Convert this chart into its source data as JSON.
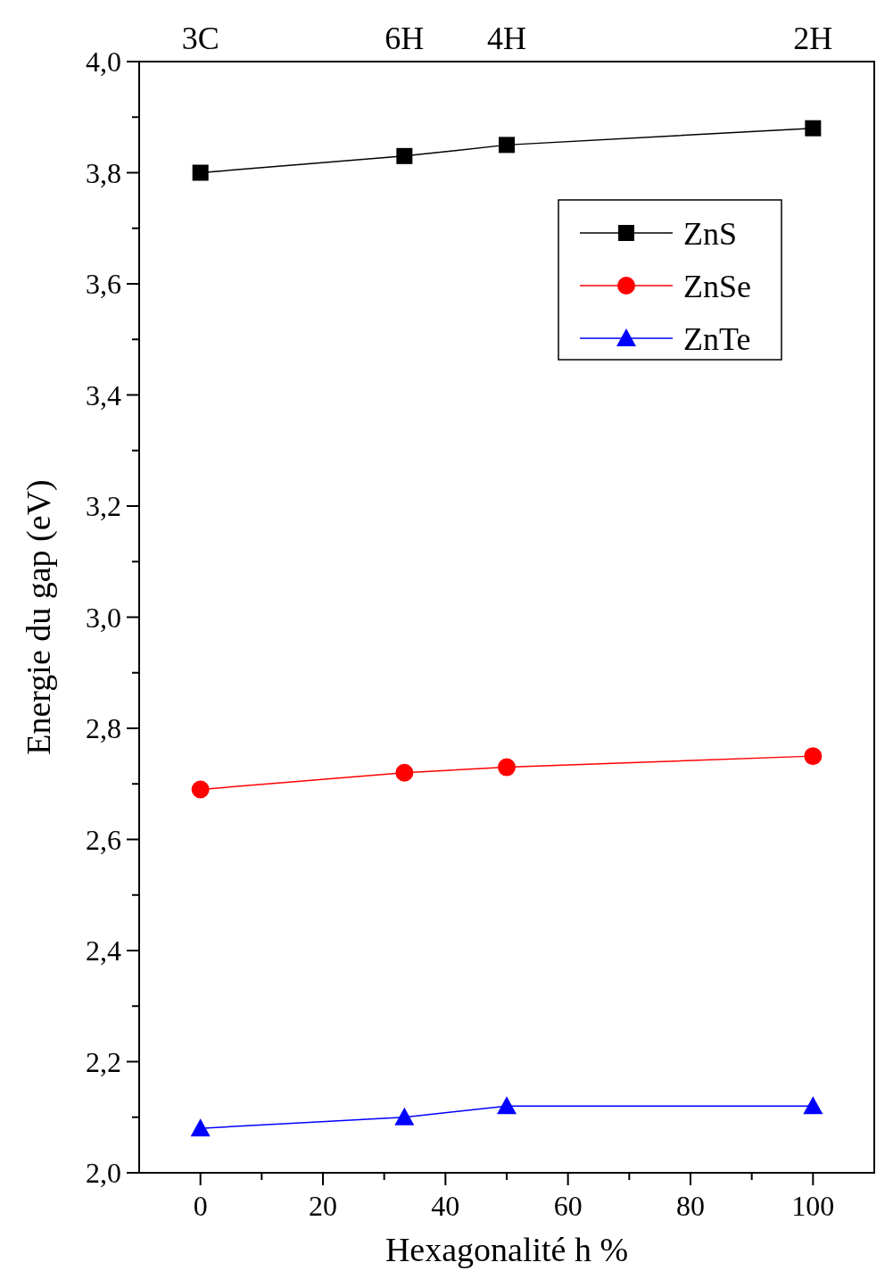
{
  "chart_data": {
    "type": "line",
    "xlabel": "Hexagonalité h %",
    "ylabel": "Energie du gap (eV)",
    "x": [
      0,
      33.3,
      50,
      100
    ],
    "series": [
      {
        "name": "ZnS",
        "color": "#000000",
        "marker": "square",
        "values": [
          3.8,
          3.83,
          3.85,
          3.88
        ]
      },
      {
        "name": "ZnSe",
        "color": "#ff0000",
        "marker": "circle",
        "values": [
          2.69,
          2.72,
          2.73,
          2.75
        ]
      },
      {
        "name": "ZnTe",
        "color": "#0000ff",
        "marker": "triangle",
        "values": [
          2.08,
          2.1,
          2.12,
          2.12
        ]
      }
    ],
    "xlim": [
      -10,
      110
    ],
    "xticks": [
      0,
      {
        "value": 10,
        "label": null
      },
      20,
      {
        "value": 30,
        "label": null
      },
      40,
      {
        "value": 50,
        "label": null
      },
      60,
      {
        "value": 70,
        "label": null
      },
      80,
      {
        "value": 90,
        "label": null
      },
      100
    ],
    "annotations": [
      "3C",
      "6H",
      "4H",
      "2H"
    ],
    "ylim": [
      2.0,
      4.0
    ],
    "yticks": [
      {
        "value": 2.0,
        "label": "2,0"
      },
      {
        "value": 2.1,
        "label": null
      },
      {
        "value": 2.2,
        "label": "2,2"
      },
      {
        "value": 2.3,
        "label": null
      },
      {
        "value": 2.4,
        "label": "2,4"
      },
      {
        "value": 2.5,
        "label": null
      },
      {
        "value": 2.6,
        "label": "2,6"
      },
      {
        "value": 2.7,
        "label": null
      },
      {
        "value": 2.8,
        "label": "2,8"
      },
      {
        "value": 2.9,
        "label": null
      },
      {
        "value": 3.0,
        "label": "3,0"
      },
      {
        "value": 3.1,
        "label": null
      },
      {
        "value": 3.2,
        "label": "3,2"
      },
      {
        "value": 3.3,
        "label": null
      },
      {
        "value": 3.4,
        "label": "3,4"
      },
      {
        "value": 3.5,
        "label": null
      },
      {
        "value": 3.6,
        "label": "3,6"
      },
      {
        "value": 3.7,
        "label": null
      },
      {
        "value": 3.8,
        "label": "3,8"
      },
      {
        "value": 3.9,
        "label": null
      },
      {
        "value": 4.0,
        "label": "4,0"
      }
    ],
    "legend": "top right",
    "grid": false,
    "line_style": "solid"
  }
}
